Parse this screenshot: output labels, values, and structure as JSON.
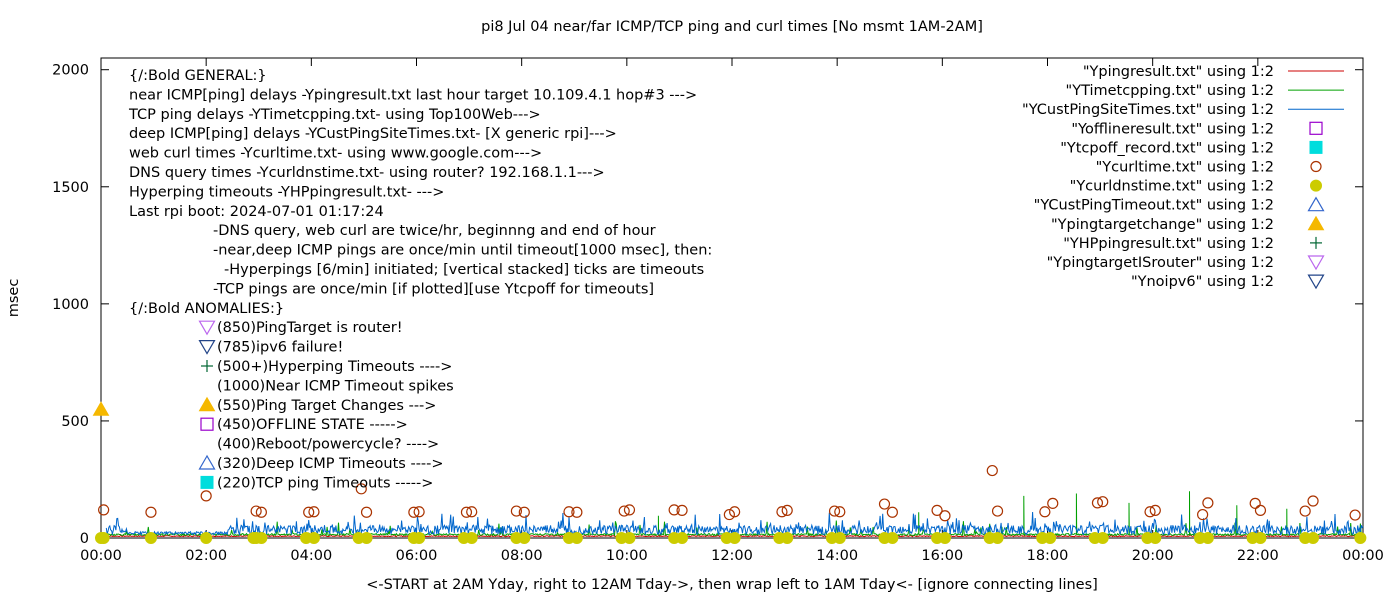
{
  "chart_data": {
    "type": "line",
    "title": "pi8 Jul 04  near/far ICMP/TCP ping and curl times [No msmt 1AM-2AM]",
    "xlabel": "<-START at 2AM Yday, right to 12AM Tday->, then wrap left to 1AM Tday<- [ignore connecting lines]",
    "ylabel": "msec",
    "xlim": [
      0,
      24
    ],
    "ylim": [
      0,
      2050
    ],
    "x_ticks": [
      {
        "v": 0,
        "label": "00:00"
      },
      {
        "v": 2,
        "label": "02:00"
      },
      {
        "v": 4,
        "label": "04:00"
      },
      {
        "v": 6,
        "label": "06:00"
      },
      {
        "v": 8,
        "label": "08:00"
      },
      {
        "v": 10,
        "label": "10:00"
      },
      {
        "v": 12,
        "label": "12:00"
      },
      {
        "v": 14,
        "label": "14:00"
      },
      {
        "v": 16,
        "label": "16:00"
      },
      {
        "v": 18,
        "label": "18:00"
      },
      {
        "v": 20,
        "label": "20:00"
      },
      {
        "v": 22,
        "label": "22:00"
      },
      {
        "v": 24,
        "label": "00:00"
      }
    ],
    "y_ticks": [
      {
        "v": 0,
        "label": "0"
      },
      {
        "v": 500,
        "label": "500"
      },
      {
        "v": 1000,
        "label": "1000"
      },
      {
        "v": 1500,
        "label": "1500"
      },
      {
        "v": 2000,
        "label": "2000"
      }
    ],
    "grid": false,
    "legend_position": "top-right",
    "legend": [
      {
        "label": "\"Ypingresult.txt\" using 1:2",
        "style": "line",
        "color": "#cc0000"
      },
      {
        "label": "\"YTimetcpping.txt\" using 1:2",
        "style": "line",
        "color": "#00a000"
      },
      {
        "label": "\"YCustPingSiteTimes.txt\" using 1:2",
        "style": "line",
        "color": "#0066cc"
      },
      {
        "label": "\"Yofflineresult.txt\" using 1:2",
        "style": "open-square",
        "color": "#9900cc"
      },
      {
        "label": "\"Ytcpoff_record.txt\" using 1:2",
        "style": "filled-square",
        "color": "#00dddd"
      },
      {
        "label": "\"Ycurltime.txt\" using 1:2",
        "style": "open-circle",
        "color": "#aa3300"
      },
      {
        "label": "\"Ycurldnstime.txt\" using 1:2",
        "style": "filled-circle",
        "color": "#cccc00"
      },
      {
        "label": "\"YCustPingTimeout.txt\" using 1:2",
        "style": "open-triangle-up",
        "color": "#3366cc"
      },
      {
        "label": "\"Ypingtargetchange\" using 1:2",
        "style": "filled-triangle-up",
        "color": "#f5b800"
      },
      {
        "label": "\"YHPpingresult.txt\" using 1:2",
        "style": "plus",
        "color": "#006633"
      },
      {
        "label": "\"YpingtargetISrouter\" using 1:2",
        "style": "open-triangle-down",
        "color": "#bb66ee"
      },
      {
        "label": "\"Ynoipv6\" using 1:2",
        "style": "open-triangle-down",
        "color": "#224488"
      }
    ],
    "annotations": [
      {
        "text": "{/:Bold GENERAL:}",
        "row": 0,
        "indent": 0
      },
      {
        "text": "near ICMP[ping] delays -Ypingresult.txt last hour target 10.109.4.1 hop#3 --->",
        "row": 1,
        "indent": 0
      },
      {
        "text": "TCP ping delays -YTimetcpping.txt- using Top100Web--->",
        "row": 2,
        "indent": 0
      },
      {
        "text": "deep ICMP[ping] delays -YCustPingSiteTimes.txt- [X generic rpi]--->",
        "row": 3,
        "indent": 0
      },
      {
        "text": "web curl times -Ycurltime.txt- using www.google.com--->",
        "row": 4,
        "indent": 0
      },
      {
        "text": "DNS query times -Ycurldnstime.txt- using router? 192.168.1.1--->",
        "row": 5,
        "indent": 0
      },
      {
        "text": "Hyperping timeouts -YHPpingresult.txt- --->",
        "row": 6,
        "indent": 0
      },
      {
        "text": "Last rpi boot: 2024-07-01 01:17:24",
        "row": 7,
        "indent": 0
      },
      {
        "text": "-DNS query, web curl are twice/hr, beginnng and end of hour",
        "row": 8,
        "indent": 1
      },
      {
        "text": "-near,deep ICMP pings are once/min until timeout[1000 msec], then:",
        "row": 9,
        "indent": 1
      },
      {
        "text": "-Hyperpings [6/min] initiated; [vertical stacked] ticks are timeouts",
        "row": 10,
        "indent": 2
      },
      {
        "text": "-TCP pings are once/min [if plotted][use Ytcpoff for timeouts]",
        "row": 11,
        "indent": 1
      },
      {
        "text": "{/:Bold ANOMALIES:}",
        "row": 12,
        "indent": 0
      }
    ],
    "anomaly_keys": [
      {
        "text": "(850)PingTarget is router!",
        "symbol": "open-triangle-down",
        "color": "#bb66ee"
      },
      {
        "text": "(785)ipv6 failure!",
        "symbol": "open-triangle-down",
        "color": "#224488"
      },
      {
        "text": "(500+)Hyperping Timeouts ---->",
        "symbol": "plus",
        "color": "#006633"
      },
      {
        "text": "(1000)Near ICMP Timeout spikes",
        "symbol": "none",
        "color": "#cc0000"
      },
      {
        "text": "(550)Ping Target Changes --->",
        "symbol": "filled-triangle-up",
        "color": "#f5b800"
      },
      {
        "text": "(450)OFFLINE STATE ----->",
        "symbol": "open-square",
        "color": "#9900cc"
      },
      {
        "text": "(400)Reboot/powercycle? ---->",
        "symbol": "none",
        "color": "#000000"
      },
      {
        "text": "(320)Deep ICMP Timeouts ---->",
        "symbol": "open-triangle-up",
        "color": "#3366cc"
      },
      {
        "text": "(220)TCP ping Timeouts ----->",
        "symbol": "filled-square",
        "color": "#00dddd"
      }
    ],
    "series": [
      {
        "id": "curltime",
        "style": "open-circle",
        "color": "#aa3300",
        "points": [
          [
            0.05,
            120
          ],
          [
            0.95,
            110
          ],
          [
            2.0,
            180
          ],
          [
            2.95,
            115
          ],
          [
            3.05,
            110
          ],
          [
            3.95,
            110
          ],
          [
            4.05,
            112
          ],
          [
            4.95,
            210
          ],
          [
            5.05,
            110
          ],
          [
            5.95,
            110
          ],
          [
            6.05,
            112
          ],
          [
            6.95,
            110
          ],
          [
            7.05,
            112
          ],
          [
            7.9,
            115
          ],
          [
            8.05,
            110
          ],
          [
            8.9,
            112
          ],
          [
            9.05,
            110
          ],
          [
            9.95,
            115
          ],
          [
            10.05,
            120
          ],
          [
            10.9,
            120
          ],
          [
            11.05,
            118
          ],
          [
            11.95,
            100
          ],
          [
            12.05,
            112
          ],
          [
            12.95,
            112
          ],
          [
            13.05,
            118
          ],
          [
            13.95,
            115
          ],
          [
            14.05,
            112
          ],
          [
            14.9,
            145
          ],
          [
            15.05,
            110
          ],
          [
            15.9,
            118
          ],
          [
            16.05,
            95
          ],
          [
            16.95,
            288
          ],
          [
            17.05,
            115
          ],
          [
            17.95,
            112
          ],
          [
            18.1,
            148
          ],
          [
            18.95,
            150
          ],
          [
            19.05,
            155
          ],
          [
            19.95,
            112
          ],
          [
            20.05,
            118
          ],
          [
            20.95,
            100
          ],
          [
            21.05,
            150
          ],
          [
            21.95,
            148
          ],
          [
            22.05,
            118
          ],
          [
            22.9,
            115
          ],
          [
            23.05,
            158
          ],
          [
            23.85,
            98
          ]
        ]
      },
      {
        "id": "pingtargetchange",
        "style": "filled-triangle-up",
        "color": "#f5b800",
        "points": [
          [
            0.0,
            550
          ]
        ]
      },
      {
        "id": "curldnstime",
        "style": "filled-circle",
        "color": "#cccc00",
        "points": [
          [
            0.0,
            0
          ],
          [
            0.05,
            0
          ],
          [
            0.95,
            0
          ],
          [
            2.0,
            0
          ],
          [
            2.9,
            0
          ],
          [
            2.95,
            0
          ],
          [
            3.05,
            0
          ],
          [
            3.9,
            0
          ],
          [
            4.05,
            0
          ],
          [
            4.9,
            0
          ],
          [
            5.05,
            0
          ],
          [
            5.95,
            0
          ],
          [
            6.05,
            0
          ],
          [
            6.9,
            0
          ],
          [
            7.05,
            0
          ],
          [
            7.9,
            0
          ],
          [
            8.05,
            0
          ],
          [
            8.9,
            0
          ],
          [
            9.05,
            0
          ],
          [
            9.9,
            0
          ],
          [
            10.05,
            0
          ],
          [
            10.9,
            0
          ],
          [
            11.05,
            0
          ],
          [
            11.9,
            0
          ],
          [
            12.05,
            0
          ],
          [
            12.9,
            0
          ],
          [
            13.05,
            0
          ],
          [
            13.9,
            0
          ],
          [
            14.05,
            0
          ],
          [
            14.9,
            0
          ],
          [
            15.05,
            0
          ],
          [
            15.9,
            0
          ],
          [
            16.05,
            0
          ],
          [
            16.9,
            0
          ],
          [
            17.05,
            0
          ],
          [
            17.9,
            0
          ],
          [
            18.05,
            0
          ],
          [
            18.9,
            0
          ],
          [
            19.05,
            0
          ],
          [
            19.9,
            0
          ],
          [
            20.05,
            0
          ],
          [
            20.9,
            0
          ],
          [
            21.05,
            0
          ],
          [
            21.9,
            0
          ],
          [
            22.05,
            0
          ],
          [
            22.9,
            0
          ],
          [
            23.05,
            0
          ],
          [
            23.95,
            0
          ]
        ]
      },
      {
        "id": "pingresult_near",
        "style": "line",
        "color": "#cc0000",
        "baseline": 8,
        "x_range": [
          0,
          24
        ],
        "samples_per_hour": 60
      },
      {
        "id": "tcpping",
        "style": "line",
        "color": "#00a000",
        "baseline": 15,
        "x_range": [
          0,
          24
        ],
        "samples_per_hour": 60,
        "spikes": [
          [
            2.05,
            12
          ],
          [
            17.55,
            180
          ],
          [
            18.55,
            190
          ],
          [
            20.7,
            200
          ],
          [
            19.55,
            150
          ],
          [
            21.6,
            140
          ],
          [
            15.55,
            110
          ],
          [
            10.6,
            95
          ],
          [
            22.55,
            125
          ]
        ]
      },
      {
        "id": "custpingsitetimes",
        "style": "line",
        "color": "#0066cc",
        "baseline": 35,
        "x_range": [
          0.1,
          24
        ],
        "samples_per_hour": 60
      }
    ]
  }
}
